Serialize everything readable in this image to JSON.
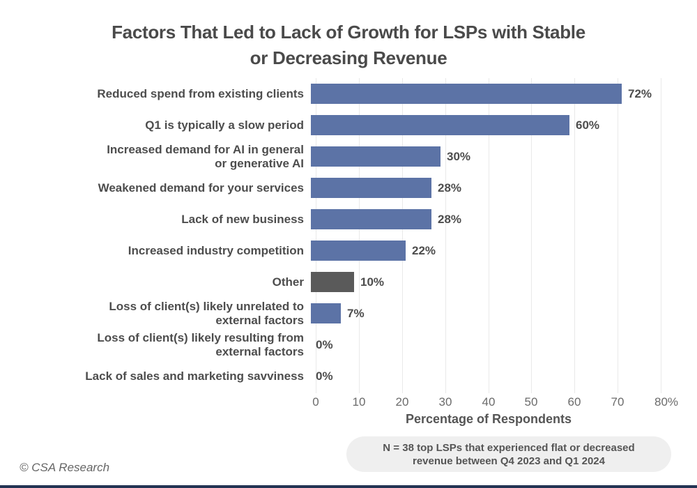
{
  "title": "Factors That Led to Lack of Growth for LSPs with Stable\nor Decreasing Revenue",
  "chart_data": {
    "type": "bar",
    "orientation": "horizontal",
    "title": "Factors That Led to Lack of Growth for LSPs with Stable or Decreasing Revenue",
    "categories": [
      "Reduced spend from existing clients",
      "Q1 is typically a slow period",
      "Increased demand for AI in general\nor generative AI",
      "Weakened demand for your services",
      "Lack of new business",
      "Increased industry competition",
      "Other",
      "Loss of client(s) likely unrelated to\nexternal factors",
      "Loss of client(s) likely resulting from\nexternal factors",
      "Lack of sales and marketing savviness"
    ],
    "values": [
      72,
      60,
      30,
      28,
      28,
      22,
      10,
      7,
      0,
      0
    ],
    "value_labels": [
      "72%",
      "60%",
      "30%",
      "28%",
      "28%",
      "22%",
      "10%",
      "7%",
      "0%",
      "0%"
    ],
    "bar_colors": [
      "#5C73A6",
      "#5C73A6",
      "#5C73A6",
      "#5C73A6",
      "#5C73A6",
      "#5C73A6",
      "#5A5A5A",
      "#5C73A6",
      "#5C73A6",
      "#5C73A6"
    ],
    "xlabel": "Percentage of Respondents",
    "ylabel": "",
    "xlim": [
      0,
      80
    ],
    "xticks": [
      "0",
      "10",
      "20",
      "30",
      "40",
      "50",
      "60",
      "70",
      "80%"
    ],
    "grid": "vertical-gridlines-on",
    "legend": "none"
  },
  "footnote": "N = 38 top LSPs that experienced flat or decreased\nrevenue between Q4 2023 and Q1 2024",
  "copyright": "© CSA Research",
  "colors": {
    "bar_blue": "#5C73A6",
    "bar_gray": "#5A5A5A",
    "gridline": "#E9E9E9",
    "title_text": "#4A4A4A",
    "label_text": "#4D4D4D",
    "tick_text": "#6B6B6B",
    "note_bg": "#EFEFEF",
    "bottom_rule": "#233453"
  }
}
